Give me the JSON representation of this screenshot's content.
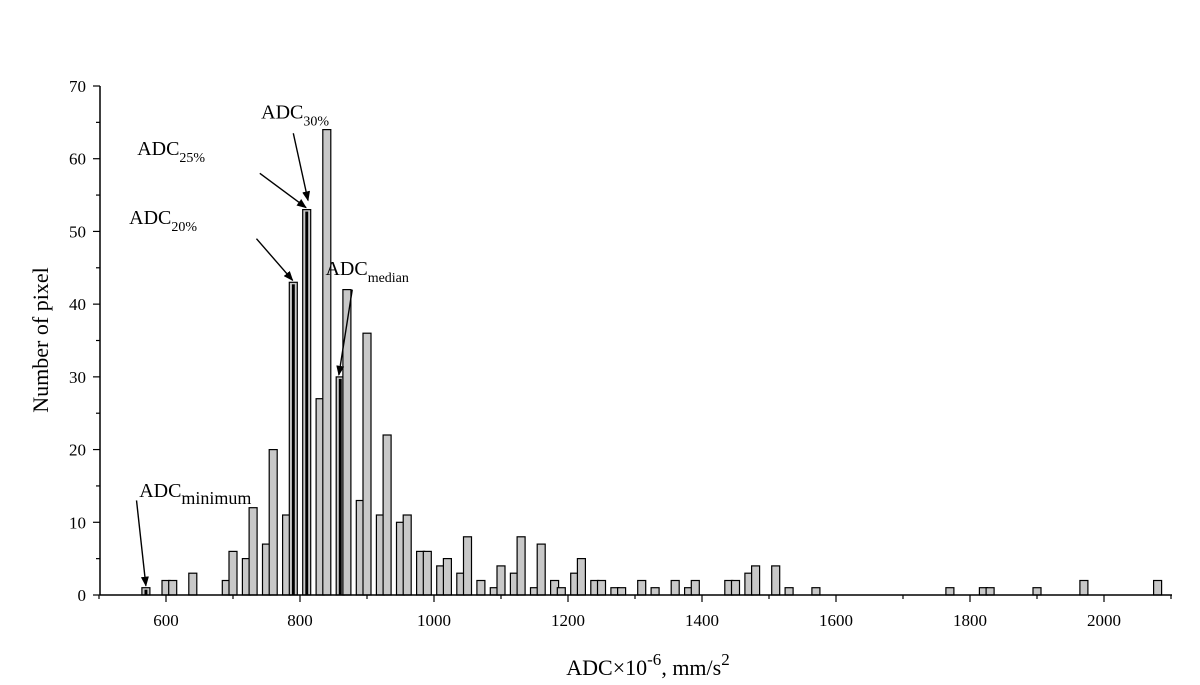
{
  "chart_data": {
    "type": "bar",
    "title": "",
    "xlabel": "ADC×10",
    "xlabel_exp": "-6",
    "xlabel_unit": ",  mm/s",
    "xlabel_unit_exp": "2",
    "ylabel": "Number of pixel",
    "xlim": [
      500,
      2100
    ],
    "ylim": [
      0,
      70
    ],
    "x_ticks": [
      "600",
      "800",
      "1000",
      "1200",
      "1400",
      "1600",
      "1800",
      "2000"
    ],
    "y_ticks": [
      "0",
      "10",
      "20",
      "30",
      "40",
      "50",
      "60",
      "70"
    ],
    "bar_width": 12,
    "bar_color": "#c8c8c8",
    "highlight_color": "#ffffff",
    "bars": [
      {
        "x": 570,
        "y": 1
      },
      {
        "x": 600,
        "y": 2
      },
      {
        "x": 610,
        "y": 2
      },
      {
        "x": 640,
        "y": 3
      },
      {
        "x": 690,
        "y": 2
      },
      {
        "x": 700,
        "y": 6
      },
      {
        "x": 720,
        "y": 5
      },
      {
        "x": 730,
        "y": 12
      },
      {
        "x": 750,
        "y": 7
      },
      {
        "x": 760,
        "y": 20
      },
      {
        "x": 780,
        "y": 11
      },
      {
        "x": 790,
        "y": 43
      },
      {
        "x": 810,
        "y": 53
      },
      {
        "x": 830,
        "y": 27
      },
      {
        "x": 840,
        "y": 64
      },
      {
        "x": 860,
        "y": 30
      },
      {
        "x": 870,
        "y": 42
      },
      {
        "x": 890,
        "y": 13
      },
      {
        "x": 900,
        "y": 36
      },
      {
        "x": 920,
        "y": 11
      },
      {
        "x": 930,
        "y": 22
      },
      {
        "x": 950,
        "y": 10
      },
      {
        "x": 960,
        "y": 11
      },
      {
        "x": 980,
        "y": 6
      },
      {
        "x": 990,
        "y": 6
      },
      {
        "x": 1010,
        "y": 4
      },
      {
        "x": 1020,
        "y": 5
      },
      {
        "x": 1040,
        "y": 3
      },
      {
        "x": 1050,
        "y": 8
      },
      {
        "x": 1070,
        "y": 2
      },
      {
        "x": 1090,
        "y": 1
      },
      {
        "x": 1100,
        "y": 4
      },
      {
        "x": 1120,
        "y": 3
      },
      {
        "x": 1130,
        "y": 8
      },
      {
        "x": 1150,
        "y": 1
      },
      {
        "x": 1160,
        "y": 7
      },
      {
        "x": 1180,
        "y": 2
      },
      {
        "x": 1190,
        "y": 1
      },
      {
        "x": 1210,
        "y": 3
      },
      {
        "x": 1220,
        "y": 5
      },
      {
        "x": 1240,
        "y": 2
      },
      {
        "x": 1250,
        "y": 2
      },
      {
        "x": 1270,
        "y": 1
      },
      {
        "x": 1280,
        "y": 1
      },
      {
        "x": 1310,
        "y": 2
      },
      {
        "x": 1330,
        "y": 1
      },
      {
        "x": 1360,
        "y": 2
      },
      {
        "x": 1380,
        "y": 1
      },
      {
        "x": 1390,
        "y": 2
      },
      {
        "x": 1440,
        "y": 2
      },
      {
        "x": 1450,
        "y": 2
      },
      {
        "x": 1470,
        "y": 3
      },
      {
        "x": 1480,
        "y": 4
      },
      {
        "x": 1510,
        "y": 4
      },
      {
        "x": 1530,
        "y": 1
      },
      {
        "x": 1570,
        "y": 1
      },
      {
        "x": 1770,
        "y": 1
      },
      {
        "x": 1820,
        "y": 1
      },
      {
        "x": 1830,
        "y": 1
      },
      {
        "x": 1900,
        "y": 1
      },
      {
        "x": 1970,
        "y": 2
      },
      {
        "x": 2080,
        "y": 2
      }
    ],
    "annotations": [
      {
        "base": "ADC",
        "sub": "minimum",
        "target_x": 570,
        "target_y": 1,
        "text_x": 560,
        "text_y": 13.5,
        "arrow_from_x": 556,
        "arrow_from_y": 13
      },
      {
        "base": "ADC",
        "sub": "20%",
        "target_x": 789,
        "target_y": 43,
        "text_x": 545,
        "text_y": 51,
        "arrow_from_x": 735,
        "arrow_from_y": 49
      },
      {
        "base": "ADC",
        "sub": "25%",
        "target_x": 809,
        "target_y": 53,
        "text_x": 557,
        "text_y": 60.5,
        "arrow_from_x": 740,
        "arrow_from_y": 58
      },
      {
        "base": "ADC",
        "sub": "30%",
        "target_x": 812,
        "target_y": 54,
        "text_x": 742,
        "text_y": 65.5,
        "arrow_from_x": 790,
        "arrow_from_y": 63.5
      },
      {
        "base": "ADC",
        "sub": "median",
        "target_x": 858,
        "target_y": 30,
        "text_x": 838,
        "text_y": 44,
        "arrow_from_x": 878,
        "arrow_from_y": 42
      }
    ],
    "highlighted_bars": [
      570,
      790,
      810,
      860
    ]
  }
}
